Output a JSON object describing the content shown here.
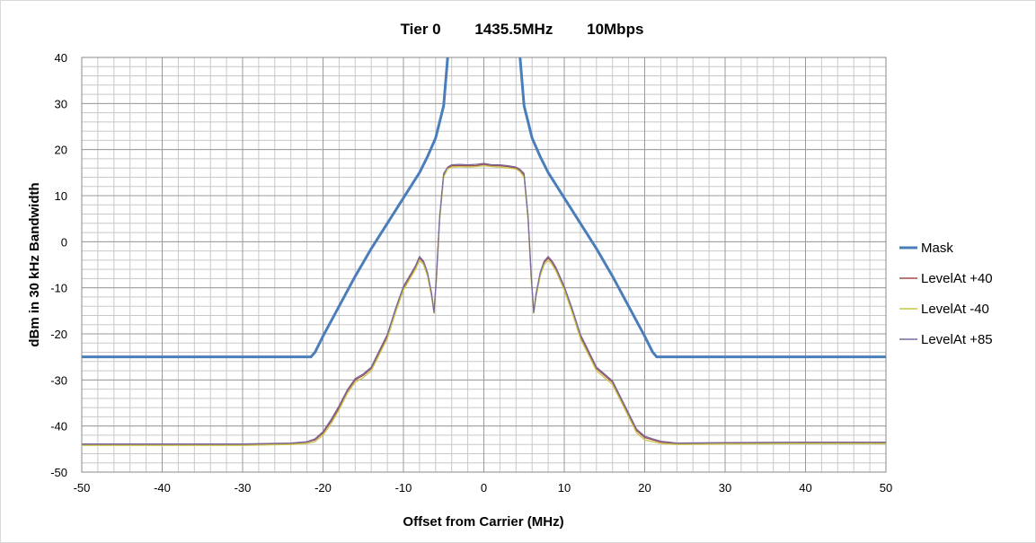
{
  "chart_data": {
    "type": "line",
    "title": "Tier 0        1435.5MHz        10Mbps",
    "xlabel": "Offset from Carrier (MHz)",
    "ylabel": "dBm in 30 kHz Bandwidth",
    "xlim": [
      -50,
      50
    ],
    "ylim": [
      -50,
      40
    ],
    "x_major_ticks": [
      -50,
      -40,
      -30,
      -20,
      -10,
      0,
      10,
      20,
      30,
      40,
      50
    ],
    "y_major_ticks": [
      -50,
      -40,
      -30,
      -20,
      -10,
      0,
      10,
      20,
      30,
      40
    ],
    "x_tick_labels": [
      "-50",
      "-40",
      "-30",
      "-20",
      "-10",
      "0",
      "10",
      "20",
      "30",
      "40",
      "50"
    ],
    "y_tick_labels": [
      "-50",
      "-40",
      "-30",
      "-20",
      "-10",
      "0",
      "10",
      "20",
      "30",
      "40"
    ],
    "grid": true,
    "grid_x_minor_step": 2,
    "grid_y_minor_step": 2,
    "legend_position": "right",
    "series": [
      {
        "name": "Mask",
        "color": "#4a7ebb",
        "x": [
          -50,
          -21.5,
          -21,
          -20,
          -18,
          -16,
          -14,
          -12,
          -10,
          -8,
          -7,
          -6,
          -5,
          -4.5
        ],
        "y": [
          -25,
          -25,
          -24,
          -20.5,
          -14,
          -7.5,
          -1.5,
          4,
          9.5,
          15,
          18.5,
          22.5,
          29.5,
          40
        ]
      },
      {
        "name": "Mask",
        "color": "#4a7ebb",
        "x": [
          4.5,
          5,
          6,
          7,
          8,
          10,
          12,
          14,
          16,
          18,
          20,
          21,
          21.5,
          50
        ],
        "y": [
          40,
          29.5,
          22.5,
          18.5,
          15,
          9.5,
          4,
          -1.5,
          -7.5,
          -14,
          -20.5,
          -24,
          -25,
          -25
        ]
      },
      {
        "name": "LevelAt +40",
        "color": "#a24b4b",
        "x": [
          -50,
          -40,
          -30,
          -24,
          -22,
          -21,
          -20,
          -19,
          -18,
          -17,
          -16,
          -15,
          -14,
          -13,
          -12,
          -11,
          -10,
          -9,
          -8.5,
          -8,
          -7.5,
          -7,
          -6.5,
          -6.2,
          -5.9,
          -5.5,
          -5,
          -4.5,
          -4,
          -3,
          -2,
          -1,
          0,
          1,
          2,
          3,
          4,
          4.5,
          5,
          5.5,
          5.9,
          6.2,
          6.5,
          7,
          7.5,
          8,
          8.5,
          9,
          10,
          11,
          12,
          13,
          14,
          15,
          16,
          17,
          18,
          19,
          20,
          21,
          22,
          24,
          30,
          40,
          50
        ],
        "y": [
          -44,
          -44,
          -44,
          -43.8,
          -43.5,
          -43,
          -41.5,
          -39,
          -36,
          -32.5,
          -30,
          -29,
          -27.5,
          -24,
          -20.5,
          -15,
          -10,
          -7,
          -5.5,
          -3.5,
          -4.5,
          -7,
          -11.5,
          -15.5,
          -8,
          5,
          14.5,
          16,
          16.5,
          16.5,
          16.5,
          16.5,
          16.8,
          16.5,
          16.5,
          16.3,
          16,
          15.5,
          14.5,
          5,
          -8,
          -15.5,
          -11.5,
          -7,
          -4.5,
          -3.5,
          -4.5,
          -6,
          -10,
          -15,
          -20.5,
          -24,
          -27.5,
          -29,
          -30.5,
          -34,
          -37.5,
          -41,
          -42.5,
          -43,
          -43.5,
          -43.8,
          -43.7,
          -43.6,
          -43.6
        ]
      },
      {
        "name": "LevelAt -40",
        "color": "#c7c74a",
        "x": [
          -50,
          -40,
          -30,
          -24,
          -22,
          -21,
          -20,
          -19,
          -18,
          -17,
          -16,
          -15,
          -14,
          -13,
          -12,
          -11,
          -10,
          -9,
          -8.5,
          -8,
          -7.5,
          -7,
          -6.5,
          -6.2,
          -5.9,
          -5.5,
          -5,
          -4.5,
          -4,
          -3,
          -2,
          -1,
          0,
          1,
          2,
          3,
          4,
          4.5,
          5,
          5.5,
          5.9,
          6.2,
          6.5,
          7,
          7.5,
          8,
          8.5,
          9,
          10,
          11,
          12,
          13,
          14,
          15,
          16,
          17,
          18,
          19,
          20,
          21,
          22,
          24,
          30,
          40,
          50
        ],
        "y": [
          -44.2,
          -44.2,
          -44.2,
          -44,
          -43.8,
          -43.4,
          -42,
          -39.5,
          -36.5,
          -33,
          -30.5,
          -29.5,
          -28,
          -24.5,
          -21,
          -15.5,
          -10.5,
          -7.5,
          -6,
          -4,
          -5,
          -7.5,
          -12,
          -15.5,
          -8.5,
          4.5,
          14,
          15.8,
          16.2,
          16.3,
          16.2,
          16.3,
          16.5,
          16.3,
          16.2,
          16,
          15.8,
          15.2,
          14,
          4.5,
          -8.5,
          -15.5,
          -12,
          -7.5,
          -5,
          -4,
          -5,
          -6.5,
          -10.5,
          -15.5,
          -21,
          -24.5,
          -28,
          -29.5,
          -31,
          -34.5,
          -38,
          -41.5,
          -43,
          -43.4,
          -43.8,
          -44,
          -43.9,
          -43.8,
          -43.8
        ]
      },
      {
        "name": "LevelAt +85",
        "color": "#7b6a9e",
        "x": [
          -50,
          -40,
          -30,
          -24,
          -22,
          -21,
          -20,
          -19,
          -18,
          -17,
          -16,
          -15,
          -14,
          -13,
          -12,
          -11,
          -10,
          -9,
          -8.5,
          -8,
          -7.5,
          -7,
          -6.5,
          -6.2,
          -5.9,
          -5.5,
          -5,
          -4.5,
          -4,
          -3,
          -2,
          -1,
          0,
          1,
          2,
          3,
          4,
          4.5,
          5,
          5.5,
          5.9,
          6.2,
          6.5,
          7,
          7.5,
          8,
          8.5,
          9,
          10,
          11,
          12,
          13,
          14,
          15,
          16,
          17,
          18,
          19,
          20,
          21,
          22,
          24,
          30,
          40,
          50
        ],
        "y": [
          -43.9,
          -43.9,
          -43.9,
          -43.7,
          -43.4,
          -42.8,
          -41.2,
          -38.6,
          -35.6,
          -32.2,
          -29.7,
          -28.7,
          -27.2,
          -23.6,
          -20.1,
          -14.6,
          -9.7,
          -6.7,
          -5.2,
          -3.2,
          -4.2,
          -6.7,
          -11.2,
          -15.3,
          -7.6,
          5.4,
          14.8,
          16.2,
          16.7,
          16.8,
          16.7,
          16.8,
          17,
          16.7,
          16.7,
          16.5,
          16.2,
          15.7,
          14.8,
          5.4,
          -7.6,
          -15.3,
          -11.2,
          -6.7,
          -4.2,
          -3.2,
          -4.2,
          -5.7,
          -9.7,
          -14.6,
          -20.1,
          -23.6,
          -27.2,
          -28.7,
          -30.2,
          -33.7,
          -37.2,
          -40.7,
          -42.2,
          -42.8,
          -43.3,
          -43.7,
          -43.6,
          -43.5,
          -43.5
        ]
      }
    ],
    "legend": [
      {
        "name": "Mask",
        "color": "#4a7ebb"
      },
      {
        "name": "LevelAt +40",
        "color": "#a24b4b"
      },
      {
        "name": "LevelAt -40",
        "color": "#c7c74a"
      },
      {
        "name": "LevelAt +85",
        "color": "#7b6a9e"
      }
    ]
  }
}
